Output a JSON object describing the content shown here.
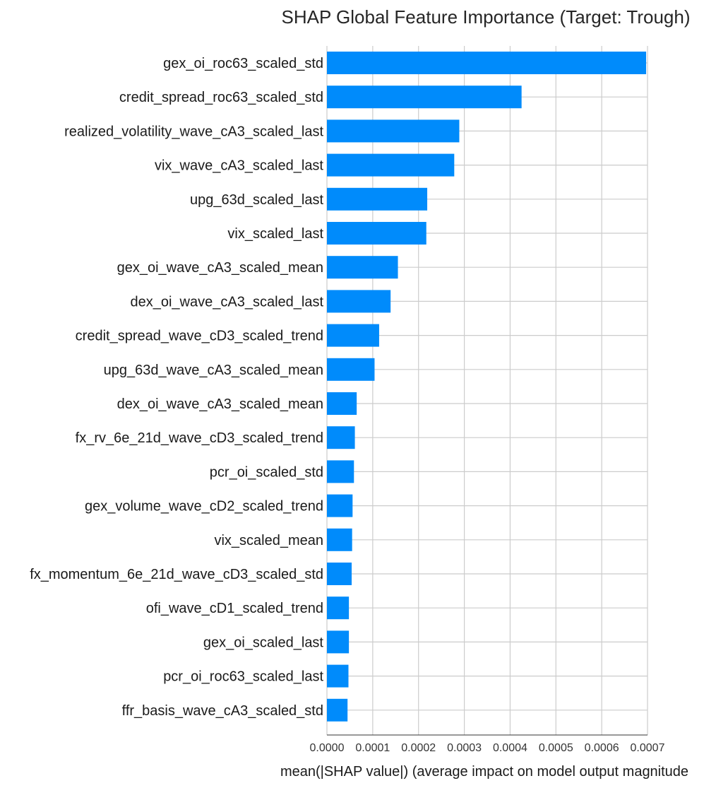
{
  "chart_data": {
    "type": "bar",
    "orientation": "horizontal",
    "title": "SHAP Global Feature Importance (Target: Trough)",
    "xlabel": "mean(|SHAP value|) (average impact on model output magnitude",
    "ylabel": "",
    "xlim": [
      0,
      0.0007
    ],
    "x_ticks": [
      "0.0000",
      "0.0001",
      "0.0002",
      "0.0003",
      "0.0004",
      "0.0005",
      "0.0006",
      "0.0007"
    ],
    "grid": true,
    "bar_color": "#008bfb",
    "categories": [
      "gex_oi_roc63_scaled_std",
      "credit_spread_roc63_scaled_std",
      "realized_volatility_wave_cA3_scaled_last",
      "vix_wave_cA3_scaled_last",
      "upg_63d_scaled_last",
      "vix_scaled_last",
      "gex_oi_wave_cA3_scaled_mean",
      "dex_oi_wave_cA3_scaled_last",
      "credit_spread_wave_cD3_scaled_trend",
      "upg_63d_wave_cA3_scaled_mean",
      "dex_oi_wave_cA3_scaled_mean",
      "fx_rv_6e_21d_wave_cD3_scaled_trend",
      "pcr_oi_scaled_std",
      "gex_volume_wave_cD2_scaled_trend",
      "vix_scaled_mean",
      "fx_momentum_6e_21d_wave_cD3_scaled_std",
      "ofi_wave_cD1_scaled_trend",
      "gex_oi_scaled_last",
      "pcr_oi_roc63_scaled_last",
      "ffr_basis_wave_cA3_scaled_std"
    ],
    "values": [
      0.000697,
      0.000425,
      0.000289,
      0.000278,
      0.000219,
      0.000217,
      0.000155,
      0.000139,
      0.000114,
      0.000104,
      6.5e-05,
      6.1e-05,
      5.9e-05,
      5.6e-05,
      5.5e-05,
      5.4e-05,
      4.8e-05,
      4.8e-05,
      4.7e-05,
      4.5e-05
    ]
  }
}
